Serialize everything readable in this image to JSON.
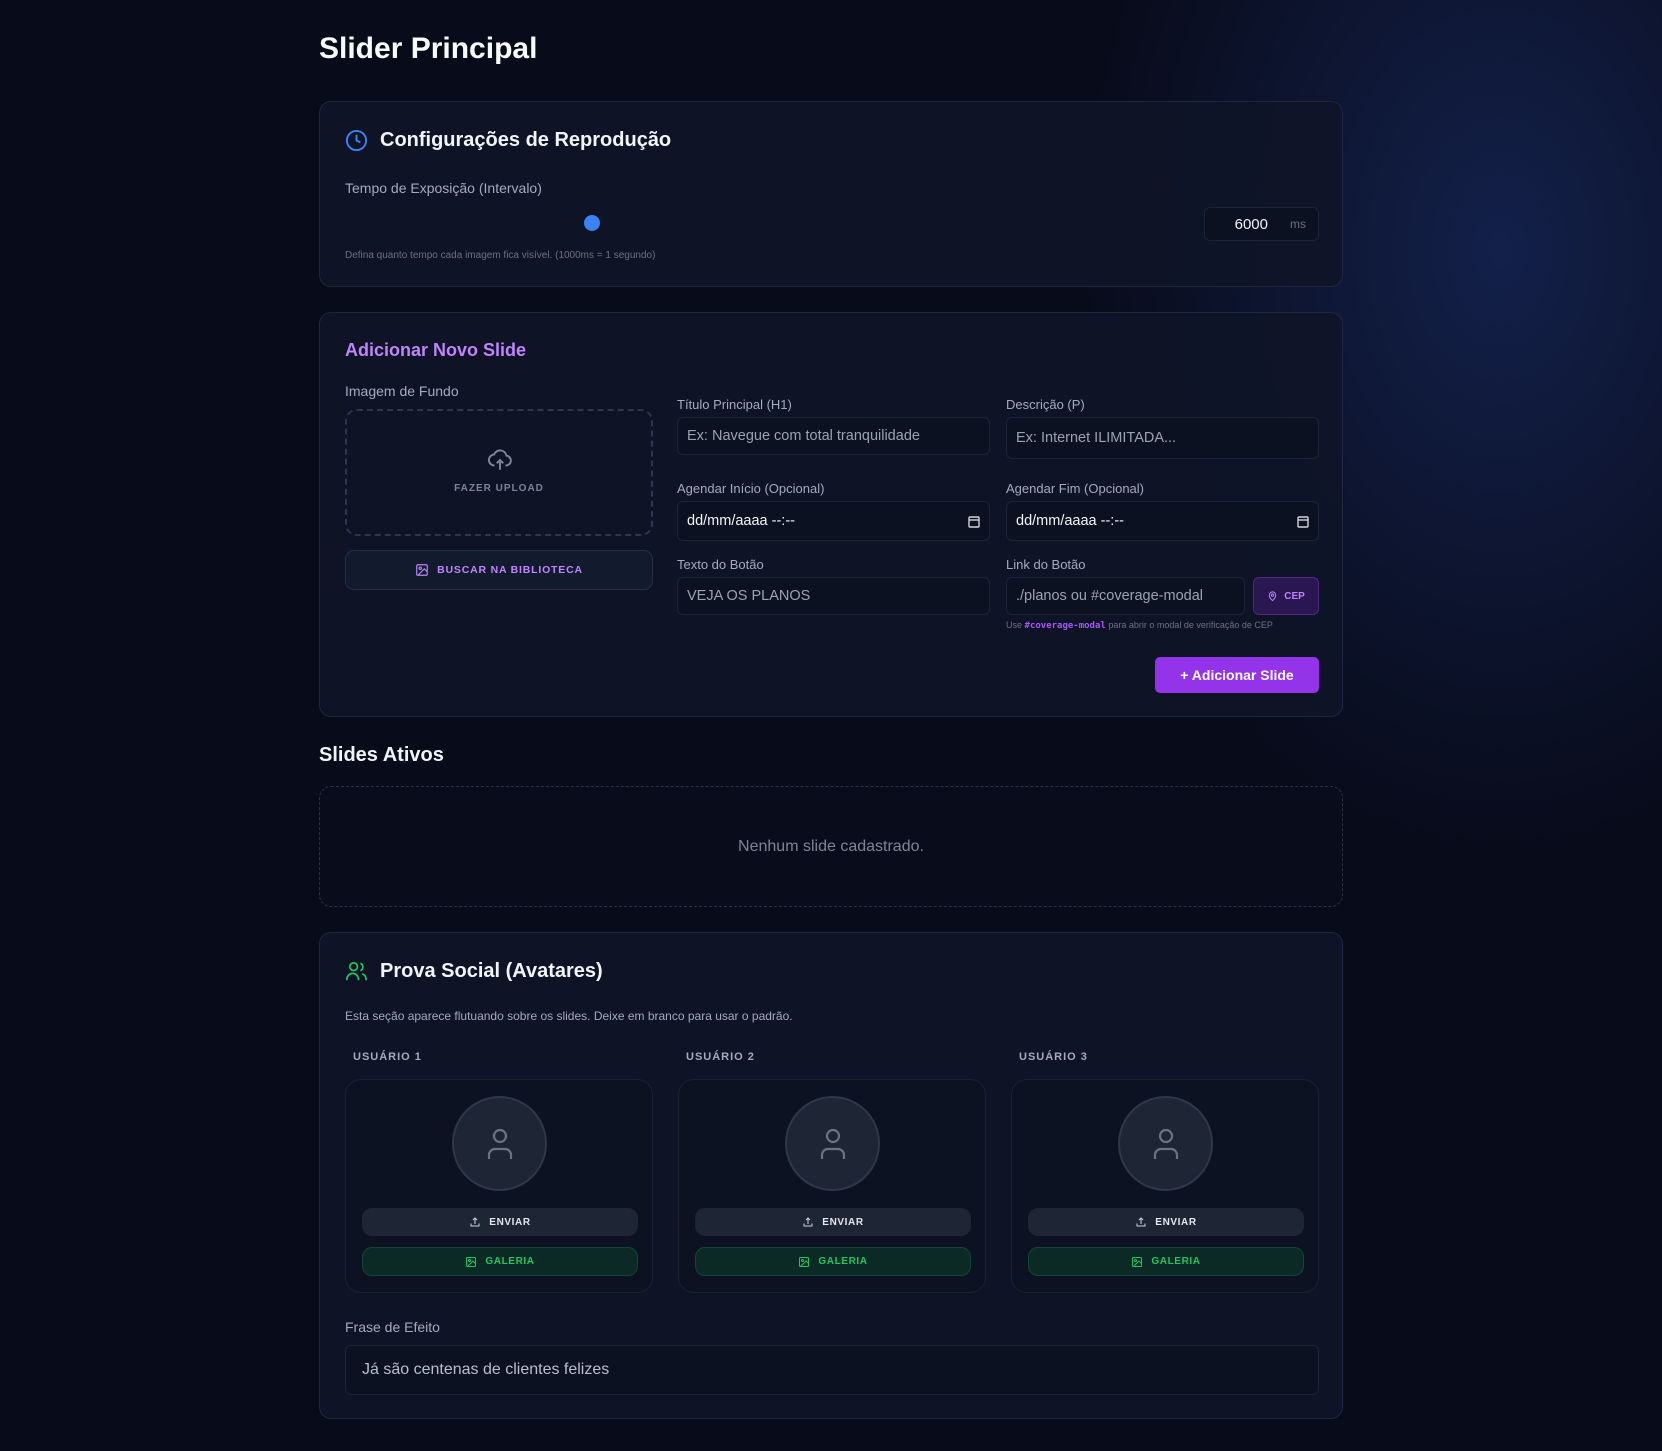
{
  "page_title": "Slider Principal",
  "playback": {
    "title": "Configurações de Reprodução",
    "interval_label": "Tempo de Exposição (Intervalo)",
    "interval_value": "6000",
    "interval_unit": "ms",
    "slider_fraction": 0.31,
    "hint": "Defina quanto tempo cada imagem fica visível. (1000ms = 1 segundo)",
    "icon": "clock-icon",
    "accent": "#3b82f6"
  },
  "new_slide": {
    "title": "Adicionar Novo Slide",
    "bg_label": "Imagem de Fundo",
    "upload_label": "FAZER UPLOAD",
    "library_label": "BUSCAR NA BIBLIOTECA",
    "title_label": "Título Principal (H1)",
    "title_placeholder": "Ex: Navegue com total tranquilidade",
    "desc_label": "Descrição (P)",
    "desc_placeholder": "Ex: Internet ILIMITADA...",
    "start_label": "Agendar Início (Opcional)",
    "start_value": "dd/mm/aaaa --:--",
    "end_label": "Agendar Fim (Opcional)",
    "end_value": "dd/mm/aaaa --:--",
    "button_text_label": "Texto do Botão",
    "button_text_placeholder": "VEJA OS PLANOS",
    "button_link_label": "Link do Botão",
    "button_link_placeholder": "./planos ou #coverage-modal",
    "cep_label": "CEP",
    "hint_pre": "Use",
    "hint_code": "#coverage-modal",
    "hint_post": "para abrir o modal de verificação de CEP",
    "add_label": "+ Adicionar Slide",
    "accent": "#9333ea"
  },
  "active": {
    "title": "Slides Ativos",
    "empty": "Nenhum slide cadastrado."
  },
  "social": {
    "title": "Prova Social (Avatares)",
    "desc": "Esta seção aparece flutuando sobre os slides. Deixe em branco para usar o padrão.",
    "users": [
      {
        "label": "USUÁRIO 1",
        "send": "ENVIAR",
        "gallery": "GALERIA"
      },
      {
        "label": "USUÁRIO 2",
        "send": "ENVIAR",
        "gallery": "GALERIA"
      },
      {
        "label": "USUÁRIO 3",
        "send": "ENVIAR",
        "gallery": "GALERIA"
      }
    ],
    "phrase_label": "Frase de Efeito",
    "phrase_value": "Já são centenas de clientes felizes",
    "accent": "#22c55e"
  }
}
